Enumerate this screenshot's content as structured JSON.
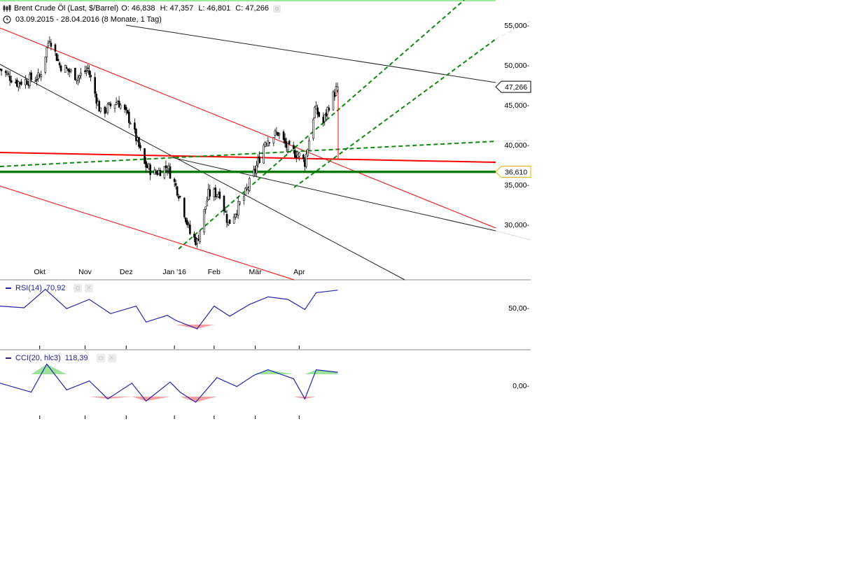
{
  "header": {
    "instrument": "Brent Crude Öl (Last, $/Barrel)",
    "open": "O: 46,838",
    "high": "H: 47,357",
    "low": "L: 46,801",
    "close": "C: 47,266",
    "range": "03.09.2015 - 28.04.2016 (8 Monate, 1 Tag)"
  },
  "price_axis": {
    "ticks": [
      "55,000-",
      "50,000-",
      "45,000-",
      "40,000-",
      "35,000-",
      "30,000-"
    ],
    "last_price_tag": "47,266",
    "support_tag": "36,610"
  },
  "time_axis": {
    "ticks": [
      "Okt",
      "Nov",
      "Dez",
      "Jan '16",
      "Feb",
      "Mär",
      "Apr"
    ]
  },
  "rsi": {
    "label": "RSI(14)",
    "value": "70,92",
    "tick": "50,00-"
  },
  "cci": {
    "label": "CCI(20, hlc3)",
    "value": "118,39",
    "tick": "0,00-"
  },
  "colors": {
    "candle": "#000000",
    "red_line": "#ff0000",
    "green_dashed": "#118811",
    "support_green": "#0a7a0a",
    "indicator_line": "#2626a8",
    "cci_positive_fill": "#9be39b",
    "cci_negative_fill": "#f3a0a0",
    "grid_tick": "#000000"
  },
  "chart_data": [
    {
      "type": "candlestick",
      "title": "Brent Crude Öl (Last, $/Barrel)",
      "x": [
        "2015-09",
        "2015-10",
        "2015-11",
        "2015-12",
        "2016-01",
        "2016-02",
        "2016-03",
        "2016-04"
      ],
      "close_points": [
        [
          "2015-09-03",
          49.5
        ],
        [
          "2015-09-15",
          47.8
        ],
        [
          "2015-10-01",
          48.5
        ],
        [
          "2015-10-08",
          53.5
        ],
        [
          "2015-10-15",
          50.0
        ],
        [
          "2015-10-28",
          48.5
        ],
        [
          "2015-11-04",
          49.5
        ],
        [
          "2015-11-13",
          44.0
        ],
        [
          "2015-11-25",
          45.5
        ],
        [
          "2015-12-04",
          43.0
        ],
        [
          "2015-12-14",
          37.5
        ],
        [
          "2015-12-21",
          36.4
        ],
        [
          "2015-12-30",
          37.3
        ],
        [
          "2016-01-08",
          33.5
        ],
        [
          "2016-01-15",
          28.9
        ],
        [
          "2016-01-20",
          27.8
        ],
        [
          "2016-01-28",
          33.8
        ],
        [
          "2016-02-05",
          34.0
        ],
        [
          "2016-02-11",
          30.1
        ],
        [
          "2016-02-22",
          33.5
        ],
        [
          "2016-03-01",
          36.8
        ],
        [
          "2016-03-08",
          40.5
        ],
        [
          "2016-03-17",
          41.5
        ],
        [
          "2016-03-24",
          39.5
        ],
        [
          "2016-04-01",
          38.7
        ],
        [
          "2016-04-05",
          37.8
        ],
        [
          "2016-04-12",
          44.5
        ],
        [
          "2016-04-18",
          42.8
        ],
        [
          "2016-04-22",
          45.0
        ],
        [
          "2016-04-28",
          47.3
        ]
      ],
      "last": {
        "open": 46.838,
        "high": 47.357,
        "low": 46.801,
        "close": 47.266
      },
      "ylim": [
        26,
        56.5
      ],
      "yticks": [
        55,
        50,
        45,
        40,
        35,
        30
      ],
      "support_level": 36.61,
      "grid": false
    },
    {
      "type": "line",
      "title": "RSI(14)",
      "last_value": 70.92,
      "ytick": 50,
      "points": [
        [
          "2015-09-03",
          52
        ],
        [
          "2015-09-20",
          50
        ],
        [
          "2015-10-05",
          72
        ],
        [
          "2015-10-20",
          49
        ],
        [
          "2015-11-05",
          60
        ],
        [
          "2015-11-20",
          43
        ],
        [
          "2015-12-08",
          52
        ],
        [
          "2015-12-15",
          33
        ],
        [
          "2015-12-30",
          41
        ],
        [
          "2016-01-05",
          35
        ],
        [
          "2016-01-20",
          25
        ],
        [
          "2016-02-01",
          52
        ],
        [
          "2016-02-12",
          40
        ],
        [
          "2016-02-26",
          54
        ],
        [
          "2016-03-10",
          63
        ],
        [
          "2016-03-24",
          60
        ],
        [
          "2016-04-05",
          48
        ],
        [
          "2016-04-13",
          68
        ],
        [
          "2016-04-28",
          71
        ]
      ]
    },
    {
      "type": "line",
      "title": "CCI(20, hlc3)",
      "last_value": 118.39,
      "ytick": 0,
      "points": [
        [
          "2015-09-03",
          20
        ],
        [
          "2015-09-25",
          -60
        ],
        [
          "2015-10-06",
          190
        ],
        [
          "2015-10-20",
          -40
        ],
        [
          "2015-11-05",
          40
        ],
        [
          "2015-11-18",
          -120
        ],
        [
          "2015-12-05",
          20
        ],
        [
          "2015-12-15",
          -140
        ],
        [
          "2016-01-01",
          30
        ],
        [
          "2016-01-08",
          -60
        ],
        [
          "2016-01-19",
          -150
        ],
        [
          "2016-02-03",
          70
        ],
        [
          "2016-02-17",
          -10
        ],
        [
          "2016-02-29",
          90
        ],
        [
          "2016-03-10",
          140
        ],
        [
          "2016-03-28",
          60
        ],
        [
          "2016-04-05",
          -120
        ],
        [
          "2016-04-13",
          140
        ],
        [
          "2016-04-28",
          118
        ]
      ]
    }
  ]
}
